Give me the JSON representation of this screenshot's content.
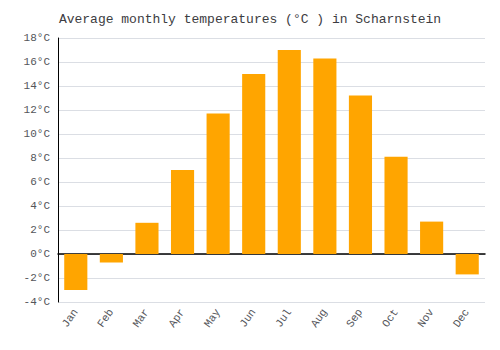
{
  "chart_data": {
    "type": "bar",
    "title": "Average monthly temperatures (°C ) in Scharnstein",
    "categories": [
      "Jan",
      "Feb",
      "Mar",
      "Apr",
      "May",
      "Jun",
      "Jul",
      "Aug",
      "Sep",
      "Oct",
      "Nov",
      "Dec"
    ],
    "values": [
      -3.0,
      -0.7,
      2.6,
      7.0,
      11.7,
      15.0,
      17.0,
      16.3,
      13.2,
      8.1,
      2.7,
      -1.7
    ],
    "color": "#FFA500",
    "ylim": [
      -4,
      18
    ],
    "yticks": [
      {
        "value": -4,
        "label": "-4°C"
      },
      {
        "value": -2,
        "label": "-2°C"
      },
      {
        "value": 0,
        "label": "0°C"
      },
      {
        "value": 2,
        "label": "2°C"
      },
      {
        "value": 4,
        "label": "4°C"
      },
      {
        "value": 6,
        "label": "6°C"
      },
      {
        "value": 8,
        "label": "8°C"
      },
      {
        "value": 10,
        "label": "10°C"
      },
      {
        "value": 12,
        "label": "12°C"
      },
      {
        "value": 14,
        "label": "14°C"
      },
      {
        "value": 16,
        "label": "16°C"
      },
      {
        "value": 18,
        "label": "18°C"
      }
    ],
    "grid": true
  }
}
